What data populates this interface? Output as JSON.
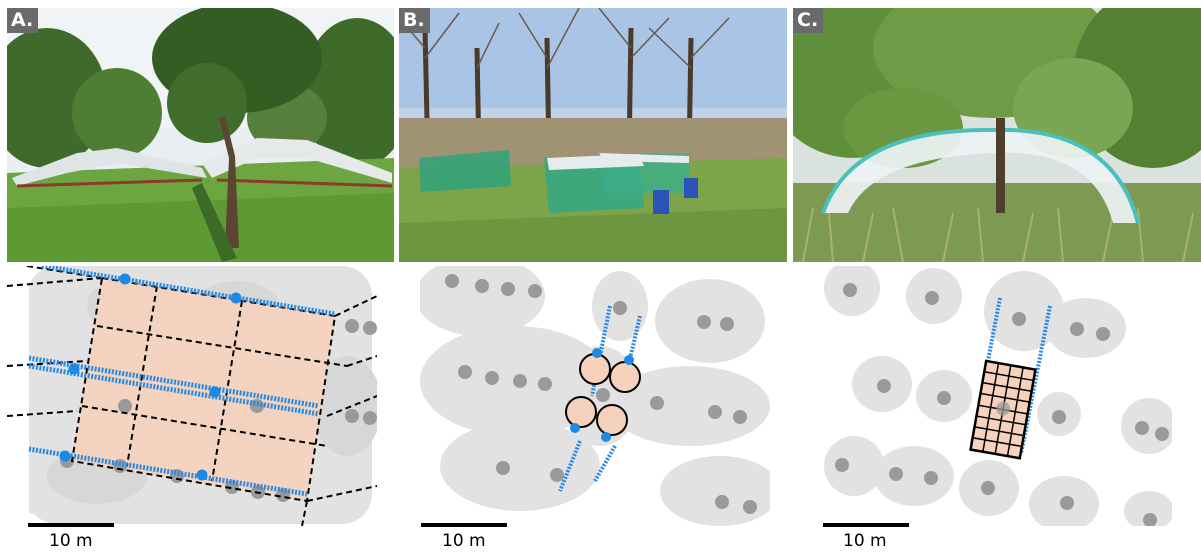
{
  "panels": [
    {
      "label": "A.",
      "scale": "10 m"
    },
    {
      "label": "B.",
      "scale": "10 m"
    },
    {
      "label": "C.",
      "scale": "10 m"
    }
  ],
  "colors": {
    "canopy": "#e2e2e2",
    "trunk": "#9a9a9a",
    "plot_fill": "#f6d2bd",
    "gutter": "#2a8ae0",
    "dashed_line": "#000000"
  }
}
